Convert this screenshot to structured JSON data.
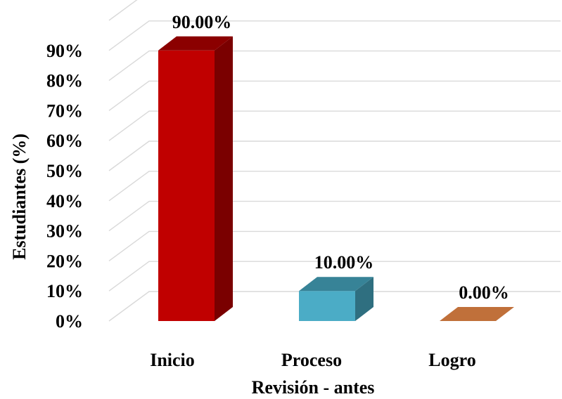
{
  "chart_data": {
    "type": "bar",
    "categories": [
      "Inicio",
      "Proceso",
      "Logro"
    ],
    "values": [
      90,
      10,
      0
    ],
    "data_labels": [
      "90.00%",
      "10.00%",
      "0.00%"
    ],
    "ylim": [
      0,
      90
    ],
    "yticks": [
      0,
      10,
      20,
      30,
      40,
      50,
      60,
      70,
      80,
      90
    ],
    "ytick_labels": [
      "0%",
      "10%",
      "20%",
      "30%",
      "40%",
      "50%",
      "60%",
      "70%",
      "80%",
      "90%"
    ],
    "xlabel": "Revisión - antes",
    "ylabel": "Estudiantes (%)",
    "style": "3d",
    "grid": true,
    "legend": "none",
    "colors": [
      {
        "front": "#c00000",
        "side": "#7a0000",
        "top": "#8b0000"
      },
      {
        "front": "#4bacc6",
        "side": "#2f6f80",
        "top": "#378397"
      },
      {
        "front": "#c0703a",
        "side": "#8a4f27",
        "top": "#c0703a"
      }
    ]
  }
}
